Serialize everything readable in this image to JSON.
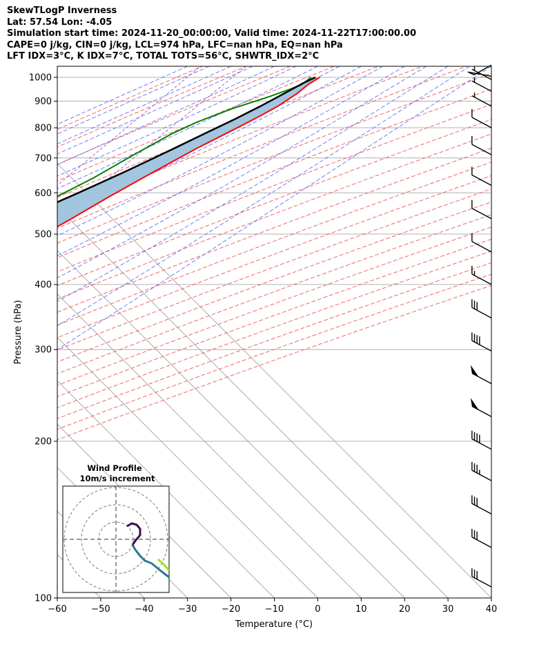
{
  "header": {
    "line1": "SkewTLogP Inverness",
    "line2": "Lat: 57.54   Lon: -4.05",
    "line3": "Simulation start time: 2024-11-20_00:00:00, Valid time: 2024-11-22T17:00:00.00",
    "line4": "CAPE=0 j/kg, CIN=0 j/kg, LCL=974 hPa, LFC=nan hPa, EQ=nan hPa",
    "line5": "LFT IDX=3°C, K IDX=7°C, TOTAL TOTS=56°C, SHWTR_IDX=2°C"
  },
  "chart_data": {
    "type": "line",
    "title": "SkewTLogP Inverness",
    "xlabel": "Temperature (°C)",
    "ylabel": "Pressure (hPa)",
    "xlim": [
      -60,
      40
    ],
    "ylim": [
      1050,
      100
    ],
    "y_scale": "log",
    "grid": true,
    "x_ticks": [
      "−60",
      "−50",
      "−40",
      "−30",
      "−20",
      "−10",
      "0",
      "10",
      "20",
      "30",
      "40"
    ],
    "y_ticks": [
      "100",
      "200",
      "300",
      "400",
      "500",
      "600",
      "700",
      "800",
      "900",
      "1000"
    ],
    "series": [
      {
        "role": "temperature",
        "color": "#ff0000",
        "points": [
          [
            3,
            1000
          ],
          [
            2,
            970
          ],
          [
            1.5,
            930
          ],
          [
            0,
            880
          ],
          [
            -2,
            840
          ],
          [
            -5,
            790
          ],
          [
            -9,
            730
          ],
          [
            -14,
            650
          ],
          [
            -18,
            590
          ],
          [
            -22,
            530
          ],
          [
            -27,
            470
          ],
          [
            -30,
            420
          ],
          [
            -33,
            400
          ],
          [
            -34,
            380
          ],
          [
            -36,
            360
          ],
          [
            -37,
            330
          ],
          [
            -39,
            300
          ],
          [
            -41,
            270
          ],
          [
            -44,
            240
          ],
          [
            -47,
            220
          ],
          [
            -50,
            200
          ],
          [
            -54,
            180
          ],
          [
            -59,
            160
          ],
          [
            -63,
            140
          ],
          [
            -67,
            125
          ],
          [
            -71,
            112
          ],
          [
            -75,
            100
          ]
        ]
      },
      {
        "role": "dewpoint",
        "color": "#008000",
        "points": [
          [
            1,
            1000
          ],
          [
            0.5,
            970
          ],
          [
            -1,
            950
          ],
          [
            -4,
            920
          ],
          [
            -10,
            870
          ],
          [
            -15,
            820
          ],
          [
            -18,
            780
          ],
          [
            -22,
            710
          ],
          [
            -26,
            640
          ],
          [
            -31,
            580
          ],
          [
            -35,
            530
          ],
          [
            -37,
            500
          ],
          [
            -38,
            470
          ],
          [
            -39,
            430
          ],
          [
            -40,
            390
          ],
          [
            -38,
            360
          ],
          [
            -40,
            330
          ],
          [
            -45,
            300
          ],
          [
            -48,
            270
          ],
          [
            -51,
            240
          ],
          [
            -54,
            210
          ],
          [
            -58,
            190
          ],
          [
            -62,
            170
          ],
          [
            -64,
            155
          ],
          [
            -66,
            140
          ],
          [
            -70,
            125
          ],
          [
            -74,
            112
          ],
          [
            -78,
            100
          ]
        ]
      },
      {
        "role": "parcel",
        "color": "#000000",
        "points": [
          [
            2,
            1000
          ],
          [
            0.5,
            974
          ],
          [
            -1.5,
            930
          ],
          [
            -4,
            880
          ],
          [
            -7,
            830
          ],
          [
            -10.5,
            780
          ],
          [
            -15,
            720
          ],
          [
            -20,
            660
          ],
          [
            -26,
            600
          ],
          [
            -33,
            540
          ],
          [
            -40,
            490
          ],
          [
            -47,
            450
          ],
          [
            -55,
            410
          ],
          [
            -62,
            380
          ],
          [
            -70,
            350
          ],
          [
            -78,
            320
          ],
          [
            -86,
            295
          ],
          [
            -95,
            270
          ],
          [
            -104,
            250
          ],
          [
            -114,
            230
          ],
          [
            -124,
            210
          ],
          [
            -133,
            195
          ],
          [
            -142,
            180
          ],
          [
            -152,
            165
          ],
          [
            -162,
            150
          ],
          [
            -171,
            138
          ],
          [
            -180,
            127
          ],
          [
            -188,
            118
          ],
          [
            -196,
            110
          ],
          [
            -202,
            104
          ],
          [
            -206,
            100
          ]
        ]
      }
    ],
    "shading": {
      "color": "#a2c5e0",
      "between": [
        "parcel",
        "temperature"
      ]
    },
    "wind_barbs": [
      {
        "p": 105,
        "kind": "3 full"
      },
      {
        "p": 125,
        "kind": "3 full"
      },
      {
        "p": 145,
        "kind": "3 full"
      },
      {
        "p": 168,
        "kind": "3 full 1 half"
      },
      {
        "p": 193,
        "kind": "4 full"
      },
      {
        "p": 223,
        "kind": "pennant"
      },
      {
        "p": 258,
        "kind": "pennant"
      },
      {
        "p": 298,
        "kind": "4 full"
      },
      {
        "p": 345,
        "kind": "3 full"
      },
      {
        "p": 400,
        "kind": "1 full 1 half"
      },
      {
        "p": 462,
        "kind": "1 full"
      },
      {
        "p": 535,
        "kind": "1 full"
      },
      {
        "p": 620,
        "kind": "1 full"
      },
      {
        "p": 710,
        "kind": "1 full"
      },
      {
        "p": 800,
        "kind": "1 full"
      },
      {
        "p": 880,
        "kind": "1 half"
      },
      {
        "p": 940,
        "kind": "1 half"
      },
      {
        "p": 990,
        "kind": "1 half"
      },
      {
        "p": 1030,
        "kind": "calm"
      }
    ],
    "inset": {
      "title": "Wind Profile",
      "subtitle": "10m/s increment",
      "rings": 3,
      "colormap": [
        "#3b0f4f",
        "#2a788e",
        "#a5db36"
      ]
    }
  }
}
